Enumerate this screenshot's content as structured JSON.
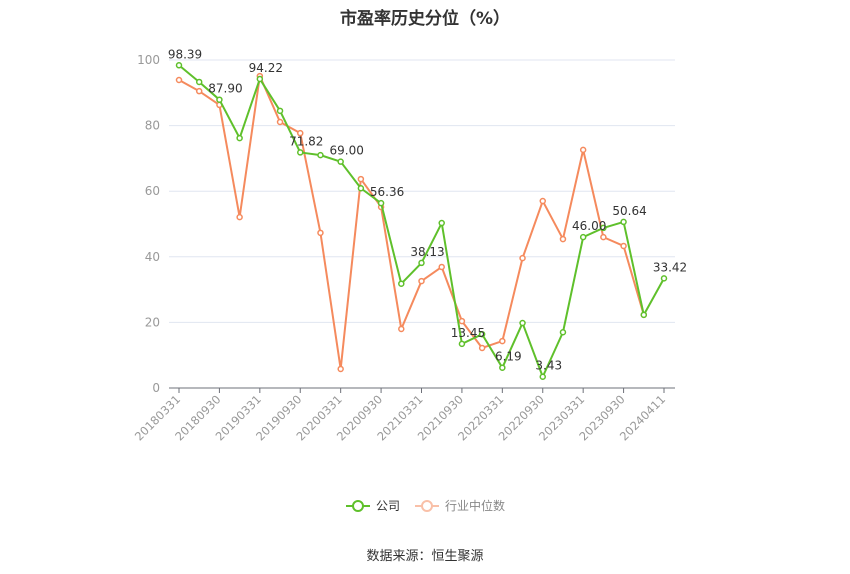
{
  "chart_data": {
    "type": "line",
    "title": "市盈率历史分位（%）",
    "xlabel": "",
    "ylabel": "",
    "ylim": [
      0,
      100
    ],
    "yticks": [
      0,
      20,
      40,
      60,
      80,
      100
    ],
    "grid": true,
    "legend_position": "bottom",
    "x": [
      "20180331",
      "20180630",
      "20180930",
      "20181231",
      "20190331",
      "20190630",
      "20190930",
      "20191231",
      "20200331",
      "20200630",
      "20200930",
      "20201231",
      "20210331",
      "20210630",
      "20210930",
      "20211231",
      "20220331",
      "20220630",
      "20220930",
      "20221231",
      "20230331",
      "20230630",
      "20230930",
      "20231231",
      "20240411"
    ],
    "xtick_labels": [
      "20180331",
      "20180930",
      "20190331",
      "20190930",
      "20200331",
      "20200930",
      "20210331",
      "20210930",
      "20220331",
      "20220930",
      "20230331",
      "20230930",
      "20240411"
    ],
    "series": [
      {
        "name": "公司",
        "color": "#5fc02b",
        "values": [
          98.39,
          93.3,
          87.9,
          76.2,
          94.22,
          84.5,
          71.82,
          71.0,
          69.0,
          60.9,
          56.36,
          31.8,
          38.13,
          50.3,
          13.45,
          16.4,
          6.19,
          19.8,
          3.43,
          17.0,
          46.0,
          48.8,
          50.64,
          22.3,
          33.42
        ],
        "data_labels": {
          "0": "98.39",
          "2": "87.90",
          "4": "94.22",
          "6": "71.82",
          "8": "69.00",
          "10": "56.36",
          "12": "38.13",
          "14": "13.45",
          "16": "6.19",
          "18": "3.43",
          "20": "46.00",
          "22": "50.64",
          "24": "33.42"
        }
      },
      {
        "name": "行业中位数",
        "color": "#f58a5d",
        "values": [
          93.9,
          90.5,
          86.3,
          52.1,
          95.1,
          81.1,
          77.7,
          47.3,
          5.8,
          63.7,
          55.2,
          18.0,
          32.6,
          36.9,
          20.4,
          12.2,
          14.3,
          39.6,
          57.0,
          45.4,
          72.6,
          46.0,
          43.3,
          22.3,
          null
        ]
      }
    ]
  },
  "legend": {
    "company": "公司",
    "industry": "行业中位数"
  },
  "footer": {
    "source": "数据来源：恒生聚源"
  }
}
